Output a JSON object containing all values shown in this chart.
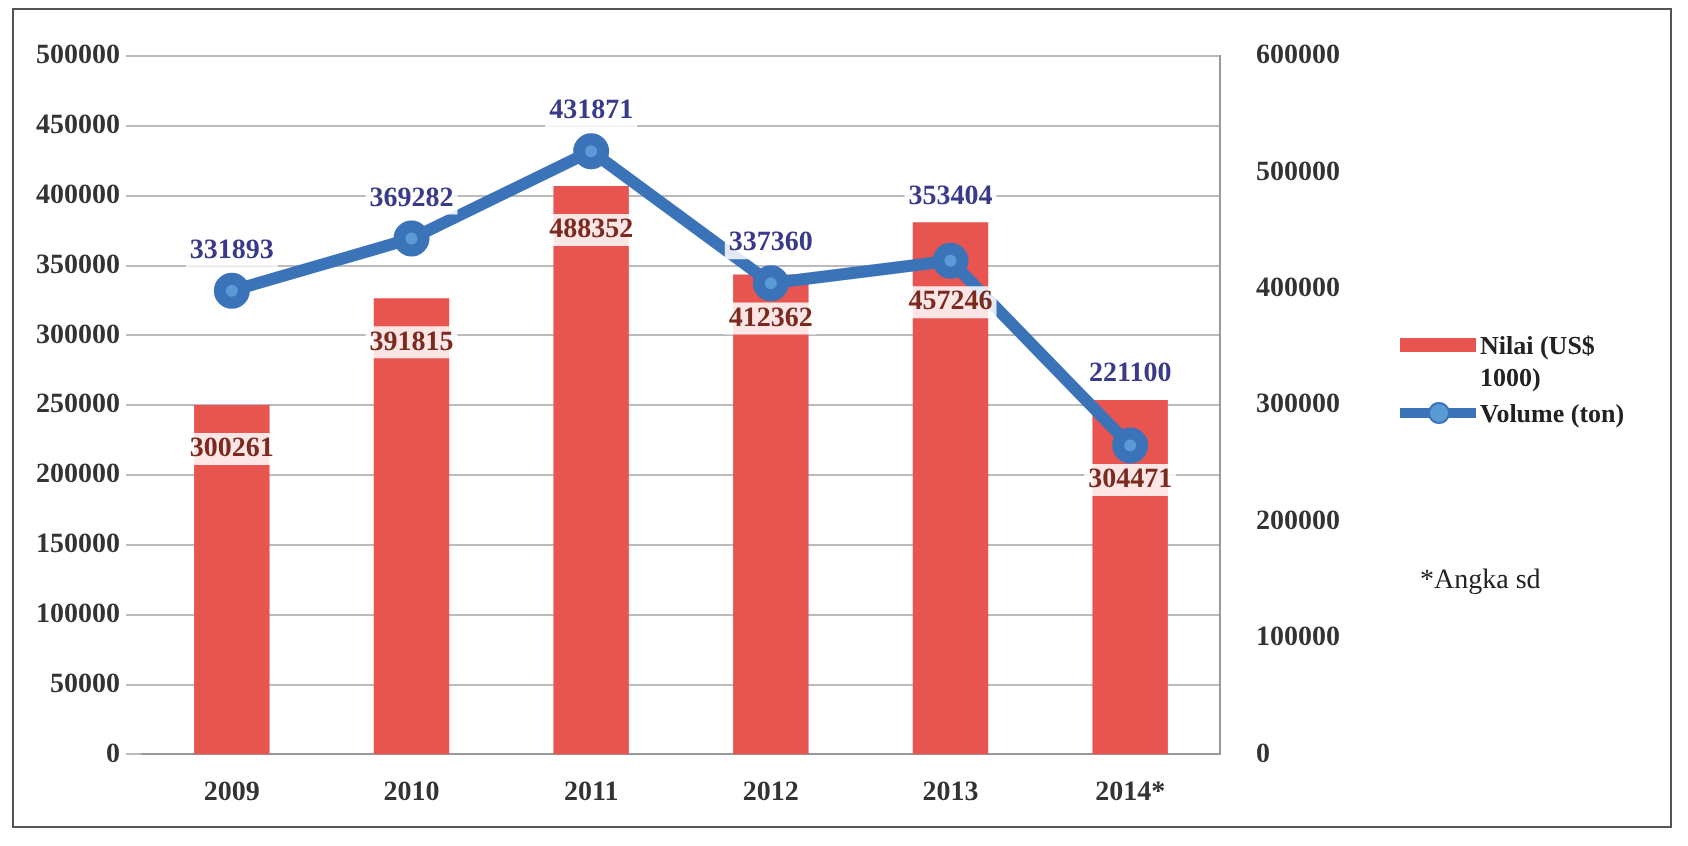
{
  "chart_data": {
    "type": "bar",
    "categories": [
      "2009",
      "2010",
      "2011",
      "2012",
      "2013",
      "2014*"
    ],
    "series": [
      {
        "name": "Nilai (US$ 1000)",
        "axis": "y2",
        "color": "#e8544f",
        "values": [
          300261,
          391815,
          488352,
          412362,
          457246,
          304471
        ]
      },
      {
        "name": "Volume (ton)",
        "type": "line",
        "axis": "y",
        "color": "#3b73b9",
        "values": [
          331893,
          369282,
          431871,
          337360,
          353404,
          221100
        ]
      }
    ],
    "ylim": [
      0,
      500000
    ],
    "yticks": [
      0,
      50000,
      100000,
      150000,
      200000,
      250000,
      300000,
      350000,
      400000,
      450000,
      500000
    ],
    "y2lim": [
      0,
      600000
    ],
    "y2ticks": [
      0,
      100000,
      200000,
      300000,
      400000,
      500000,
      600000
    ],
    "grid": "y",
    "legend": "right",
    "marker": "circle",
    "data_labels": true,
    "annotations": [
      "*Angka sd"
    ]
  }
}
